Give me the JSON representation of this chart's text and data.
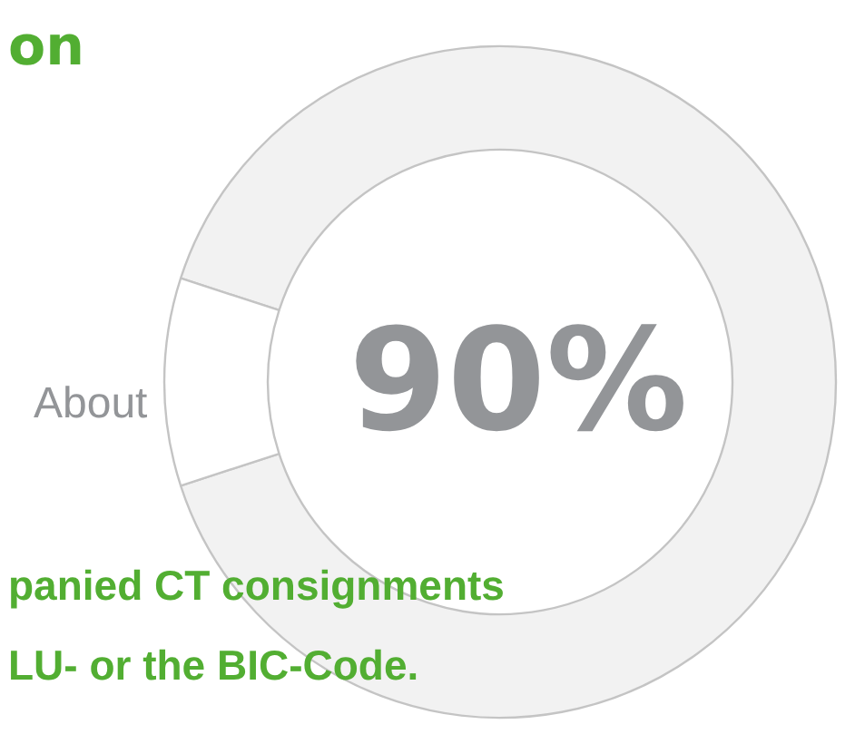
{
  "chart_data": {
    "type": "donut",
    "title": "on",
    "categories": [
      null,
      null
    ],
    "values": [
      90,
      10
    ],
    "colors": [
      "#f2f2f2",
      "#ffffff"
    ],
    "value_labels": [
      "90%",
      null
    ],
    "annotations": [
      "About",
      "panied CT consignments",
      "LU- or the BIC-Code."
    ]
  }
}
